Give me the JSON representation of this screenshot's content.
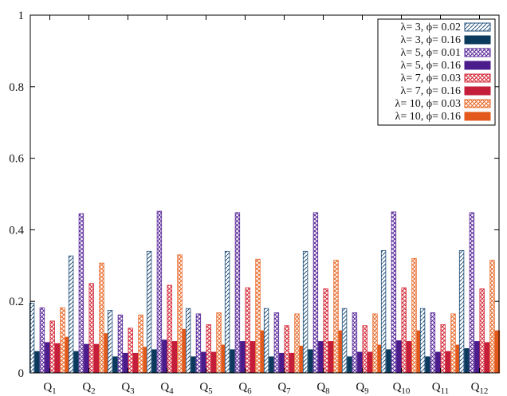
{
  "chart_data": {
    "type": "bar",
    "title": "",
    "xlabel": "",
    "ylabel": "",
    "ylim": [
      0,
      1
    ],
    "yticks": [
      "0",
      "0.2",
      "0.4",
      "0.6",
      "0.8",
      "1"
    ],
    "ytick_values": [
      0,
      0.2,
      0.4,
      0.6,
      0.8,
      1
    ],
    "categories": [
      "Q1",
      "Q2",
      "Q3",
      "Q4",
      "Q5",
      "Q6",
      "Q7",
      "Q8",
      "Q9",
      "Q10",
      "Q11",
      "Q12"
    ],
    "category_labels": [
      {
        "base": "Q",
        "sub": "1"
      },
      {
        "base": "Q",
        "sub": "2"
      },
      {
        "base": "Q",
        "sub": "3"
      },
      {
        "base": "Q",
        "sub": "4"
      },
      {
        "base": "Q",
        "sub": "5"
      },
      {
        "base": "Q",
        "sub": "6"
      },
      {
        "base": "Q",
        "sub": "7"
      },
      {
        "base": "Q",
        "sub": "8"
      },
      {
        "base": "Q",
        "sub": "9"
      },
      {
        "base": "Q",
        "sub": "10"
      },
      {
        "base": "Q",
        "sub": "11"
      },
      {
        "base": "Q",
        "sub": "12"
      }
    ],
    "legend_position": "top-right",
    "grid": false,
    "series": [
      {
        "name": "λ= 3, ϕ= 0.02",
        "color": "#1f4e79",
        "fill": "diag",
        "values": [
          0.195,
          0.327,
          0.175,
          0.34,
          0.18,
          0.34,
          0.18,
          0.34,
          0.18,
          0.342,
          0.18,
          0.342
        ]
      },
      {
        "name": "λ= 3, ϕ= 0.16",
        "color": "#0b3a5c",
        "fill": "solid",
        "values": [
          0.06,
          0.06,
          0.045,
          0.065,
          0.045,
          0.065,
          0.045,
          0.065,
          0.045,
          0.065,
          0.045,
          0.068
        ]
      },
      {
        "name": "λ= 5, ϕ= 0.01",
        "color": "#5a2a9a",
        "fill": "cross",
        "values": [
          0.182,
          0.445,
          0.162,
          0.452,
          0.165,
          0.448,
          0.168,
          0.448,
          0.168,
          0.45,
          0.168,
          0.448
        ]
      },
      {
        "name": "λ= 5, ϕ= 0.16",
        "color": "#4b1c8c",
        "fill": "solid",
        "values": [
          0.085,
          0.08,
          0.055,
          0.092,
          0.058,
          0.088,
          0.055,
          0.088,
          0.058,
          0.09,
          0.058,
          0.088
        ]
      },
      {
        "name": "λ= 7, ϕ= 0.03",
        "color": "#d42b3a",
        "fill": "cross",
        "values": [
          0.145,
          0.25,
          0.125,
          0.245,
          0.135,
          0.238,
          0.132,
          0.235,
          0.132,
          0.238,
          0.135,
          0.235
        ]
      },
      {
        "name": "λ= 7, ϕ= 0.16",
        "color": "#c41e3a",
        "fill": "solid",
        "values": [
          0.082,
          0.08,
          0.055,
          0.088,
          0.058,
          0.088,
          0.055,
          0.088,
          0.058,
          0.088,
          0.06,
          0.085
        ]
      },
      {
        "name": "λ= 10, ϕ= 0.03",
        "color": "#e86a2a",
        "fill": "cross",
        "values": [
          0.182,
          0.307,
          0.162,
          0.33,
          0.168,
          0.318,
          0.165,
          0.315,
          0.165,
          0.32,
          0.165,
          0.315
        ]
      },
      {
        "name": "λ= 10, ϕ= 0.16",
        "color": "#e2591b",
        "fill": "solid",
        "values": [
          0.1,
          0.11,
          0.072,
          0.122,
          0.078,
          0.118,
          0.075,
          0.118,
          0.078,
          0.118,
          0.078,
          0.118
        ]
      }
    ]
  }
}
